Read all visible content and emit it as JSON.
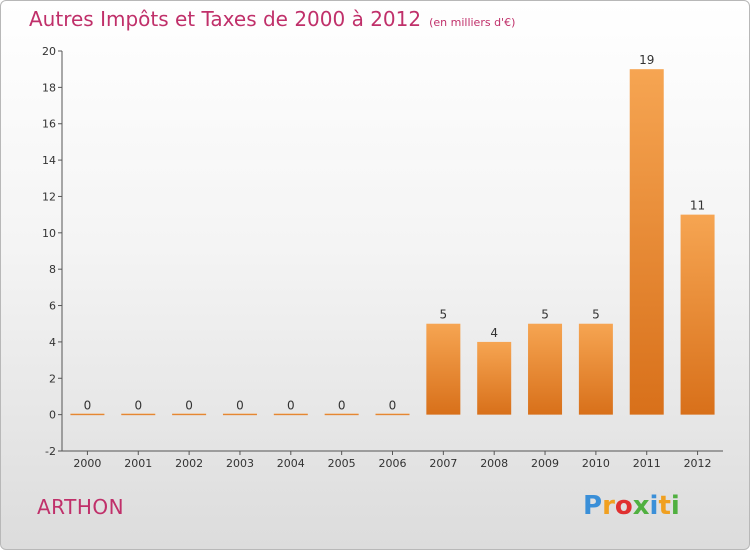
{
  "title": "Autres Impôts et Taxes de 2000 à 2012",
  "title_unit": "(en milliers d'€)",
  "commune": "ARTHON",
  "logo": {
    "text": "Proxiti",
    "letters": [
      {
        "ch": "P",
        "color": "#3a8fd8"
      },
      {
        "ch": "r",
        "color": "#f0a020"
      },
      {
        "ch": "o",
        "color": "#e03030"
      },
      {
        "ch": "x",
        "color": "#50b040"
      },
      {
        "ch": "i",
        "color": "#3a8fd8"
      },
      {
        "ch": "t",
        "color": "#f0a020"
      },
      {
        "ch": "i",
        "color": "#50b040"
      }
    ]
  },
  "colors": {
    "bar": "#f0922e",
    "bar_dark": "#d8701a",
    "axis": "#555555",
    "title": "#c0306a"
  },
  "chart_data": {
    "type": "bar",
    "title": "Autres Impôts et Taxes de 2000 à 2012",
    "subtitle": "(en milliers d'€)",
    "categories": [
      "2000",
      "2001",
      "2002",
      "2003",
      "2004",
      "2005",
      "2006",
      "2007",
      "2008",
      "2009",
      "2010",
      "2011",
      "2012"
    ],
    "values": [
      0,
      0,
      0,
      0,
      0,
      0,
      0,
      5,
      4,
      5,
      5,
      19,
      11
    ],
    "data_labels": [
      "0",
      "0",
      "0",
      "0",
      "0",
      "0",
      "0",
      "5",
      "4",
      "5",
      "5",
      "19",
      "11"
    ],
    "yticks": [
      -2,
      0,
      2,
      4,
      6,
      8,
      10,
      12,
      14,
      16,
      18,
      20
    ],
    "ylim": [
      -2,
      20
    ],
    "grid": false,
    "xlabel": "",
    "ylabel": ""
  }
}
